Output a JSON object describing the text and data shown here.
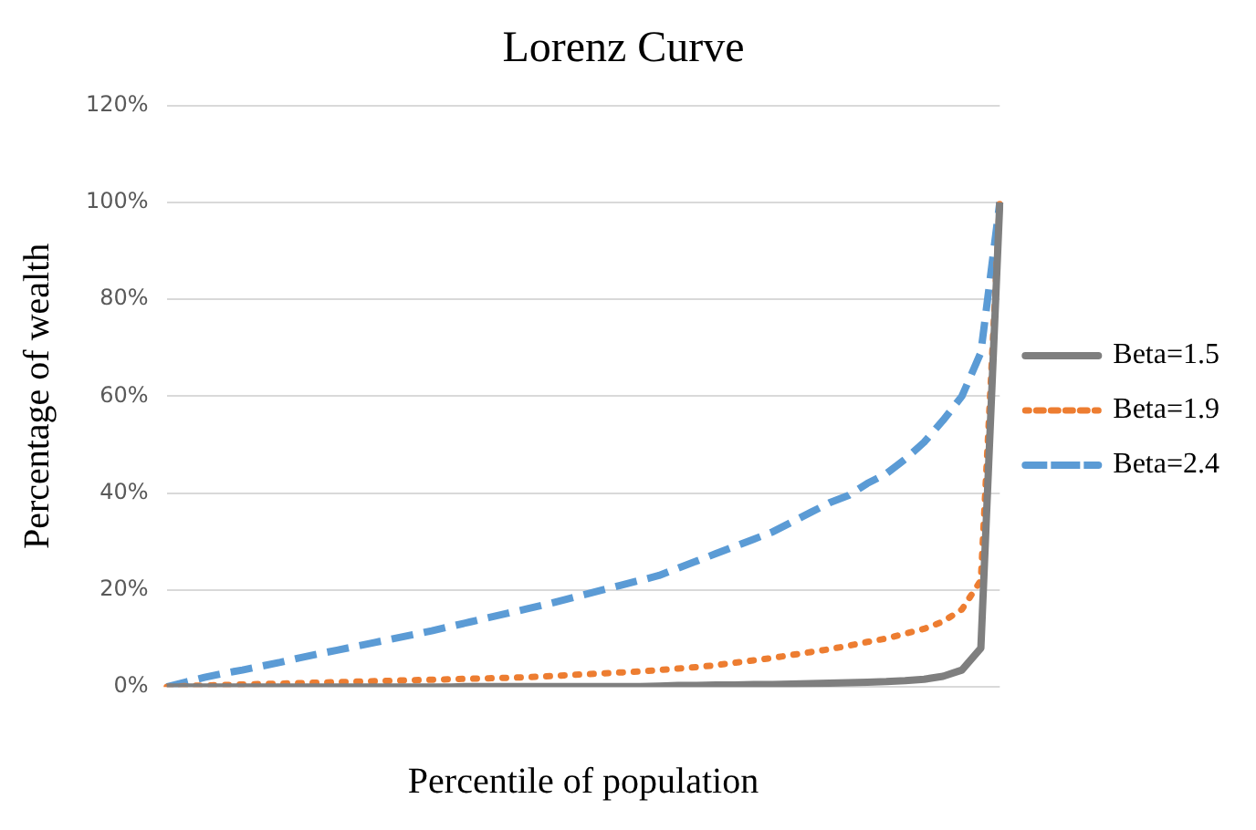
{
  "chart_data": {
    "type": "line",
    "title": "Lorenz Curve",
    "xlabel": "Percentile of population",
    "ylabel": "Percentage of wealth",
    "categories": [
      null,
      null,
      null,
      null,
      null,
      null,
      null,
      null,
      null,
      null,
      null,
      null,
      null,
      null,
      null,
      null,
      null,
      null,
      null,
      null,
      null,
      null,
      null,
      null,
      null,
      null,
      null,
      null,
      null,
      null,
      null,
      null,
      null,
      null,
      null,
      null,
      null,
      null,
      null,
      null,
      null,
      null,
      null,
      null,
      null
    ],
    "ylim": [
      0,
      120
    ],
    "yticks": [
      {
        "value": 0,
        "label": "0%"
      },
      {
        "value": 20,
        "label": "20%"
      },
      {
        "value": 40,
        "label": "40%"
      },
      {
        "value": 60,
        "label": "60%"
      },
      {
        "value": 80,
        "label": "80%"
      },
      {
        "value": 100,
        "label": "100%"
      },
      {
        "value": 120,
        "label": "120%"
      }
    ],
    "grid": "y",
    "legend": "right",
    "marker": "none",
    "series": [
      {
        "name": "Beta=1.5",
        "color": "#7f7f7f",
        "line_style": "solid",
        "values": [
          0,
          0,
          0,
          0,
          0,
          0,
          0,
          0,
          0,
          0,
          0,
          0,
          0,
          0,
          0,
          0,
          0.1,
          0.1,
          0.1,
          0.1,
          0.1,
          0.1,
          0.1,
          0.1,
          0.1,
          0.1,
          0.2,
          0.3,
          0.3,
          0.4,
          0.4,
          0.5,
          0.5,
          0.6,
          0.7,
          0.8,
          0.9,
          1,
          1.1,
          1.3,
          1.6,
          2.2,
          3.5,
          8,
          100
        ]
      },
      {
        "name": "Beta=1.9",
        "color": "#ed7d31",
        "line_style": "dotted",
        "values": [
          0,
          0.2,
          0.3,
          0.4,
          0.5,
          0.6,
          0.7,
          0.8,
          0.9,
          1,
          1.1,
          1.2,
          1.3,
          1.4,
          1.5,
          1.6,
          1.7,
          1.8,
          1.9,
          2,
          2.2,
          2.4,
          2.6,
          2.8,
          3,
          3.2,
          3.5,
          3.8,
          4.1,
          4.5,
          5,
          5.5,
          6,
          6.6,
          7.2,
          7.8,
          8.5,
          9.3,
          10,
          11,
          12,
          13.5,
          16,
          22,
          100
        ]
      },
      {
        "name": "Beta=2.4",
        "color": "#5b9bd5",
        "line_style": "dashed",
        "values": [
          0,
          1,
          2,
          2.8,
          3.5,
          4.3,
          5.1,
          6,
          6.8,
          7.6,
          8.4,
          9.2,
          10,
          10.8,
          11.6,
          12.5,
          13.4,
          14.3,
          15.2,
          16.1,
          17,
          18,
          19,
          20,
          21,
          22,
          23,
          24.5,
          26,
          27.5,
          29,
          30.5,
          32,
          34,
          36,
          38,
          39.5,
          42,
          44,
          47,
          50.5,
          55,
          60,
          69,
          100
        ]
      }
    ]
  }
}
